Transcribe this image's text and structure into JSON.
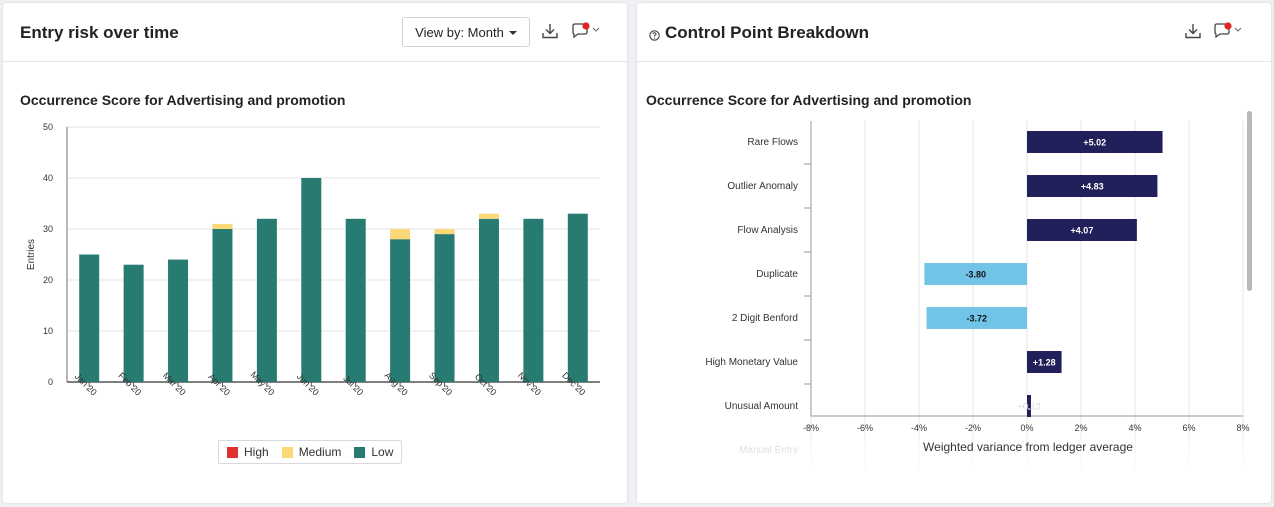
{
  "left_panel": {
    "title": "Entry risk over time",
    "viewby_label": "View by: Month",
    "chart_title": "Occurrence Score for Advertising and promotion",
    "legend": [
      {
        "label": "High",
        "color": "#e03030"
      },
      {
        "label": "Medium",
        "color": "#fbd977"
      },
      {
        "label": "Low",
        "color": "#277b70"
      }
    ]
  },
  "right_panel": {
    "title": "Control Point Breakdown",
    "chart_title": "Occurrence Score for Advertising and promotion",
    "x_axis_title": "Weighted variance from ledger average"
  },
  "icons": {
    "download": "download-icon",
    "comment": "comment-icon",
    "help": "help-icon"
  },
  "colors": {
    "low": "#277b70",
    "medium": "#fbd977",
    "high": "#e03030",
    "positive": "#22205a",
    "negative": "#71c4e8",
    "notification": "#e02424"
  },
  "chart_data": [
    {
      "type": "bar",
      "stacked": true,
      "title": "Occurrence Score for Advertising and promotion",
      "xlabel": "",
      "ylabel": "Entries",
      "ylim": [
        0,
        50
      ],
      "yticks": [
        0,
        10,
        20,
        30,
        40,
        50
      ],
      "categories": [
        "Jan 20",
        "Feb 20",
        "Mar 20",
        "Apr 20",
        "May 20",
        "Jun 20",
        "Jul 20",
        "Aug 20",
        "Sep 20",
        "Oct 20",
        "Nov 20",
        "Dec 20"
      ],
      "series": [
        {
          "name": "Low",
          "color": "#277b70",
          "values": [
            25,
            23,
            24,
            30,
            32,
            40,
            32,
            28,
            29,
            32,
            32,
            33
          ]
        },
        {
          "name": "Medium",
          "color": "#fbd977",
          "values": [
            0,
            0,
            0,
            1,
            0,
            0,
            0,
            2,
            1,
            1,
            0,
            0
          ]
        },
        {
          "name": "High",
          "color": "#e03030",
          "values": [
            0,
            0,
            0,
            0,
            0,
            0,
            0,
            0,
            0,
            0,
            0,
            0
          ]
        }
      ],
      "grid": true,
      "legend": "bottom"
    },
    {
      "type": "bar",
      "orientation": "horizontal",
      "title": "Occurrence Score for Advertising and promotion",
      "xlabel": "Weighted variance from ledger average",
      "xlim": [
        -8,
        8
      ],
      "xticks": [
        "-8%",
        "-6%",
        "-4%",
        "-2%",
        "0%",
        "2%",
        "4%",
        "6%",
        "8%"
      ],
      "categories": [
        "Rare Flows",
        "Outlier Anomaly",
        "Flow Analysis",
        "Duplicate",
        "2 Digit Benford",
        "High Monetary Value",
        "Unusual Amount",
        "Manual Entry"
      ],
      "values": [
        5.02,
        4.83,
        4.07,
        -3.8,
        -3.72,
        1.28,
        0.13,
        0
      ],
      "labels": [
        "+5.02",
        "+4.83",
        "+4.07",
        "-3.80",
        "-3.72",
        "+1.28",
        "+0.13",
        ""
      ],
      "grid": true
    }
  ]
}
